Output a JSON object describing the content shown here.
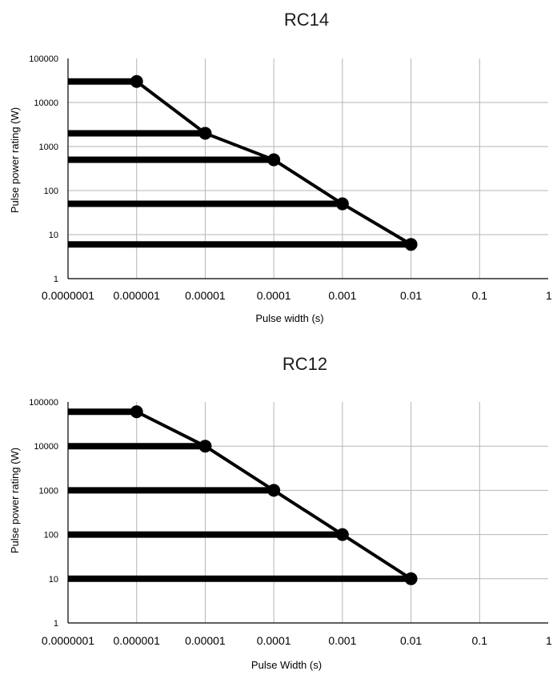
{
  "chart_data": [
    {
      "type": "line",
      "title": "RC14",
      "xlabel": "Pulse width (s)",
      "ylabel": "Pulse power rating (W)",
      "x_scale": "log",
      "y_scale": "log",
      "xlim": [
        1e-07,
        1
      ],
      "ylim": [
        1,
        100000
      ],
      "x_ticks": [
        "0.0000001",
        "0.000001",
        "0.00001",
        "0.0001",
        "0.001",
        "0.01",
        "0.1",
        "1"
      ],
      "y_ticks": [
        "1",
        "10",
        "100",
        "1000",
        "10000",
        "100000"
      ],
      "grid": true,
      "x": [
        1e-06,
        1e-05,
        0.0001,
        0.001,
        0.01
      ],
      "values": [
        30000,
        2000,
        500,
        50,
        6
      ]
    },
    {
      "type": "line",
      "title": "RC12",
      "xlabel": "Pulse Width (s)",
      "ylabel": "Pulse power rating (W)",
      "x_scale": "log",
      "y_scale": "log",
      "xlim": [
        1e-07,
        1
      ],
      "ylim": [
        1,
        100000
      ],
      "x_ticks": [
        "0.0000001",
        "0.000001",
        "0.00001",
        "0.0001",
        "0.001",
        "0.01",
        "0.1",
        "1"
      ],
      "y_ticks": [
        "1",
        "10",
        "100",
        "1000",
        "10000",
        "100000"
      ],
      "grid": true,
      "x": [
        1e-06,
        1e-05,
        0.0001,
        0.001,
        0.01
      ],
      "values": [
        60000,
        10000,
        1000,
        100,
        10
      ]
    }
  ]
}
